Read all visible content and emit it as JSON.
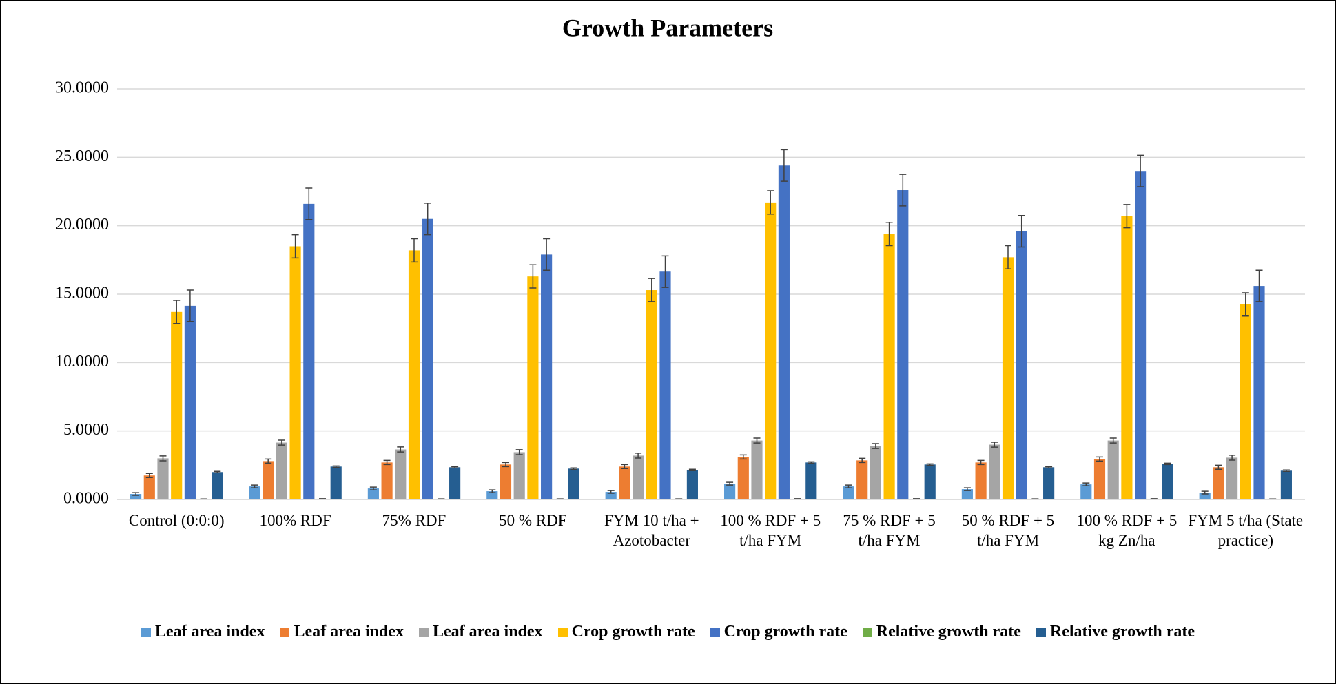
{
  "chart_data": {
    "type": "bar",
    "title": "Growth Parameters",
    "categories": [
      "Control (0:0:0)",
      "100% RDF",
      "75% RDF",
      "50 % RDF",
      "FYM 10 t/ha + Azotobacter",
      "100 % RDF + 5 t/ha FYM",
      "75 % RDF + 5 t/ha FYM",
      "50 % RDF + 5 t/ha FYM",
      "100 % RDF + 5 kg Zn/ha",
      "FYM 5 t/ha (State practice)"
    ],
    "series": [
      {
        "name": "Leaf area index",
        "color": "#5b9bd5",
        "values": [
          0.4,
          0.95,
          0.8,
          0.6,
          0.55,
          1.15,
          0.95,
          0.75,
          1.1,
          0.5
        ],
        "errors": [
          0.1,
          0.1,
          0.1,
          0.1,
          0.1,
          0.1,
          0.1,
          0.1,
          0.1,
          0.1
        ]
      },
      {
        "name": "Leaf area index",
        "color": "#ed7d31",
        "values": [
          1.75,
          2.8,
          2.7,
          2.55,
          2.4,
          3.1,
          2.85,
          2.7,
          2.95,
          2.35
        ],
        "errors": [
          0.15,
          0.15,
          0.15,
          0.15,
          0.15,
          0.15,
          0.15,
          0.15,
          0.15,
          0.15
        ]
      },
      {
        "name": "Leaf area index",
        "color": "#a5a5a5",
        "values": [
          3.0,
          4.15,
          3.65,
          3.45,
          3.2,
          4.3,
          3.9,
          4.0,
          4.3,
          3.05
        ],
        "errors": [
          0.18,
          0.18,
          0.18,
          0.18,
          0.18,
          0.18,
          0.18,
          0.18,
          0.18,
          0.18
        ]
      },
      {
        "name": "Crop growth rate",
        "color": "#ffc000",
        "values": [
          13.7,
          18.5,
          18.2,
          16.3,
          15.3,
          21.7,
          19.4,
          17.7,
          20.7,
          14.25
        ],
        "errors": [
          0.85,
          0.85,
          0.85,
          0.85,
          0.85,
          0.85,
          0.85,
          0.85,
          0.85,
          0.85
        ]
      },
      {
        "name": "Crop growth rate",
        "color": "#4472c4",
        "values": [
          14.15,
          21.6,
          20.5,
          17.9,
          16.65,
          24.4,
          22.6,
          19.6,
          24.0,
          15.6
        ],
        "errors": [
          1.15,
          1.15,
          1.15,
          1.15,
          1.15,
          1.15,
          1.15,
          1.15,
          1.15,
          1.15
        ]
      },
      {
        "name": "Relative growth rate",
        "color": "#70ad47",
        "values": [
          0.03,
          0.05,
          0.04,
          0.04,
          0.04,
          0.05,
          0.05,
          0.04,
          0.05,
          0.03
        ],
        "errors": [
          0.005,
          0.005,
          0.005,
          0.005,
          0.005,
          0.005,
          0.005,
          0.005,
          0.005,
          0.005
        ]
      },
      {
        "name": "Relative growth rate",
        "color": "#255e91",
        "values": [
          2.0,
          2.4,
          2.35,
          2.25,
          2.15,
          2.7,
          2.55,
          2.35,
          2.6,
          2.1
        ],
        "errors": [
          0.05,
          0.05,
          0.05,
          0.05,
          0.05,
          0.05,
          0.05,
          0.05,
          0.05,
          0.05
        ]
      }
    ],
    "ylim": [
      0,
      30
    ],
    "yticks": [
      {
        "value": 0,
        "label": "0.0000"
      },
      {
        "value": 5,
        "label": "5.0000"
      },
      {
        "value": 10,
        "label": "10.0000"
      },
      {
        "value": 15,
        "label": "15.0000"
      },
      {
        "value": 20,
        "label": "20.0000"
      },
      {
        "value": 25,
        "label": "25.0000"
      },
      {
        "value": 30,
        "label": "30.0000"
      }
    ],
    "grid": true,
    "legend": "bottom"
  }
}
